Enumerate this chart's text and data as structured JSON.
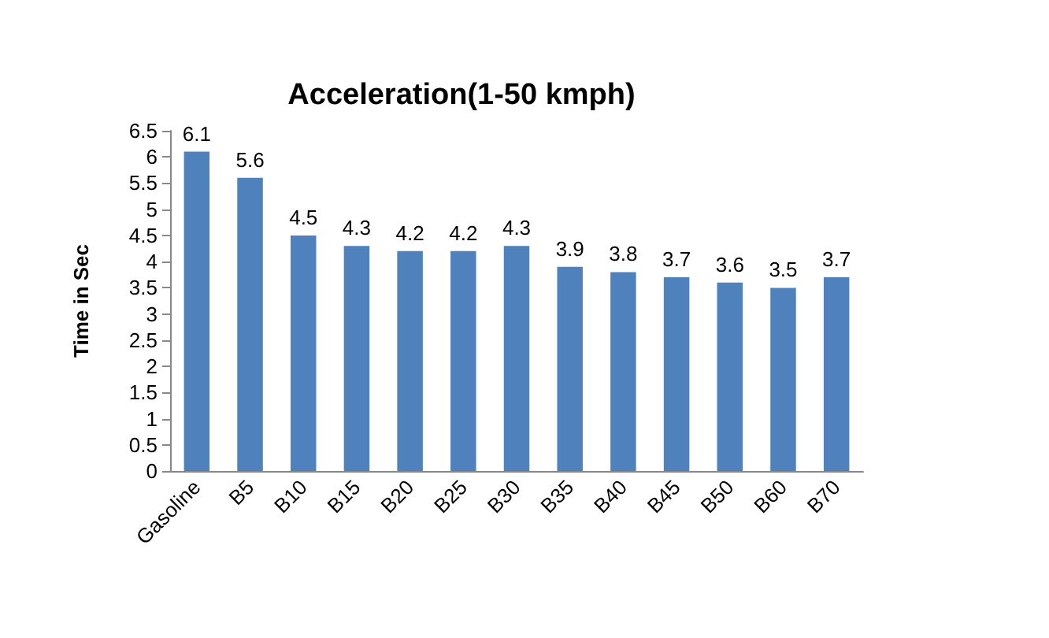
{
  "chart_data": {
    "type": "bar",
    "title": "Acceleration(1-50 kmph)",
    "ylabel": "Time in Sec",
    "categories": [
      "Gasoline",
      "B5",
      "B10",
      "B15",
      "B20",
      "B25",
      "B30",
      "B35",
      "B40",
      "B45",
      "B50",
      "B60",
      "B70"
    ],
    "values": [
      6.1,
      5.6,
      4.5,
      4.3,
      4.2,
      4.2,
      4.3,
      3.9,
      3.8,
      3.7,
      3.6,
      3.5,
      3.7
    ],
    "color": "#4f81bd",
    "ylim": [
      0,
      6.5
    ],
    "yticks": [
      0,
      0.5,
      1,
      1.5,
      2,
      2.5,
      3,
      3.5,
      4,
      4.5,
      5,
      5.5,
      6,
      6.5
    ],
    "grid": false,
    "data_labels": true
  }
}
